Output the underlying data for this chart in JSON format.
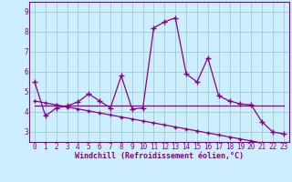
{
  "x": [
    0,
    1,
    2,
    3,
    4,
    5,
    6,
    7,
    8,
    9,
    10,
    11,
    12,
    13,
    14,
    15,
    16,
    17,
    18,
    19,
    20,
    21,
    22,
    23
  ],
  "y_main": [
    5.5,
    3.8,
    4.2,
    4.3,
    4.5,
    4.9,
    4.55,
    4.2,
    5.8,
    4.15,
    4.2,
    8.2,
    8.5,
    8.7,
    5.9,
    5.5,
    6.7,
    4.8,
    4.55,
    4.4,
    4.35,
    3.5,
    3.0,
    2.9
  ],
  "y_linear": [
    4.55,
    4.45,
    4.35,
    4.25,
    4.15,
    4.05,
    3.95,
    3.85,
    3.75,
    3.65,
    3.55,
    3.45,
    3.35,
    3.25,
    3.15,
    3.05,
    2.95,
    2.85,
    2.75,
    2.65,
    2.55,
    2.45,
    2.35,
    2.25
  ],
  "y_flat": [
    4.3,
    4.3,
    4.3,
    4.3,
    4.3,
    4.3,
    4.3,
    4.3,
    4.3,
    4.3,
    4.3,
    4.3,
    4.3,
    4.3,
    4.3,
    4.3,
    4.3,
    4.3,
    4.3,
    4.3,
    4.3,
    4.3,
    4.3,
    4.3
  ],
  "line_color": "#880088",
  "bg_color": "#CCEEFF",
  "grid_color": "#99CCCC",
  "axis_color": "#880088",
  "xlabel": "Windchill (Refroidissement éolien,°C)",
  "ylim": [
    2.5,
    9.5
  ],
  "xlim": [
    -0.5,
    23.5
  ],
  "yticks": [
    3,
    4,
    5,
    6,
    7,
    8,
    9
  ],
  "xticks": [
    0,
    1,
    2,
    3,
    4,
    5,
    6,
    7,
    8,
    9,
    10,
    11,
    12,
    13,
    14,
    15,
    16,
    17,
    18,
    19,
    20,
    21,
    22,
    23
  ],
  "tick_fontsize": 5.5,
  "xlabel_fontsize": 6.0,
  "marker_size": 3
}
